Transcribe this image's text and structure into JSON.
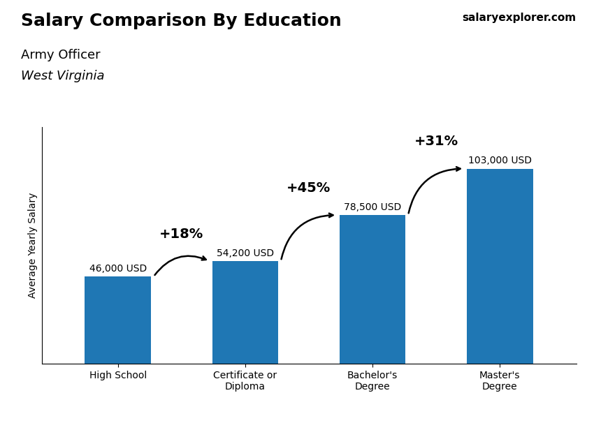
{
  "chart_data": {
    "type": "bar",
    "title": "Salary Comparison By Education",
    "subtitle": [
      "Army Officer",
      "West Virginia"
    ],
    "source": "salaryexplorer.com",
    "y_label": "Average Yearly Salary",
    "categories": [
      "High School",
      "Certificate or\nDiploma",
      "Bachelor's\nDegree",
      "Master's\nDegree"
    ],
    "values": [
      46000,
      54200,
      78500,
      103000
    ],
    "value_labels": [
      "46,000 USD",
      "54,200 USD",
      "78,500 USD",
      "103,000 USD"
    ],
    "data_labels": true,
    "annotations": [
      "+18%",
      "+45%",
      "+31%"
    ],
    "ylim": [
      0,
      125000
    ],
    "tick_labels": "x"
  }
}
